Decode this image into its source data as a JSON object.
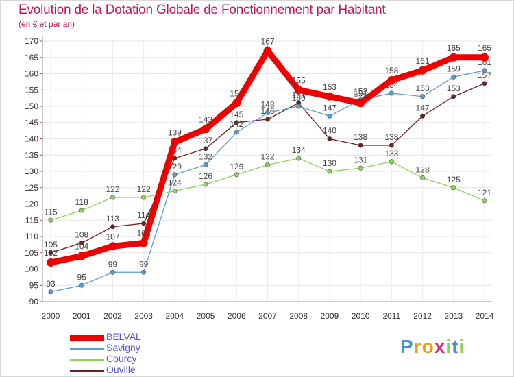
{
  "title": "Evolution de la Dotation Globale de Fonctionnement par Habitant",
  "subtitle": "(en € et par an)",
  "logo_text": "Proxiti",
  "colors": {
    "title": "#c2185b",
    "axis_text": "#333333"
  },
  "chart_data": {
    "type": "line",
    "title": "Evolution de la Dotation Globale de Fonctionnement par Habitant",
    "ylabel": "(en € et par an)",
    "xlabel": "",
    "ylim": [
      90,
      170
    ],
    "ytick_step": 5,
    "categories": [
      "2000",
      "2001",
      "2002",
      "2003",
      "2004",
      "2005",
      "2006",
      "2007",
      "2008",
      "2009",
      "2010",
      "2011",
      "2012",
      "2013",
      "2014"
    ],
    "series": [
      {
        "name": "Ouville",
        "color": "#6e1f1f",
        "values": [
          105,
          108,
          113,
          114,
          134,
          137,
          145,
          146,
          151,
          140,
          138,
          138,
          147,
          153,
          157
        ]
      },
      {
        "name": "Courcy",
        "color": "#8fd15a",
        "values": [
          115,
          118,
          122,
          122,
          124,
          126,
          129,
          132,
          134,
          130,
          131,
          133,
          128,
          125,
          121
        ]
      },
      {
        "name": "Savigny",
        "color": "#5b9bd5",
        "values": [
          93,
          95,
          99,
          99,
          129,
          132,
          142,
          148,
          150,
          147,
          152,
          154,
          153,
          159,
          161
        ]
      },
      {
        "name": "BELVAL",
        "color": "#ee0000",
        "values": [
          102,
          104,
          107,
          108,
          139,
          143,
          151,
          167,
          155,
          153,
          151,
          158,
          161,
          165,
          165
        ]
      }
    ],
    "legend": [
      "BELVAL",
      "Savigny",
      "Courcy",
      "Ouville"
    ]
  }
}
